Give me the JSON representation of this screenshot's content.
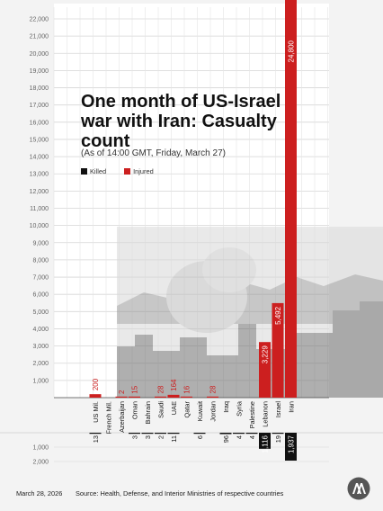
{
  "header": {
    "title": "One month of US-Israel war with Iran: Casualty count",
    "subtitle": "(As of 14:00 GMT, Friday, March 27)"
  },
  "legend": {
    "killed": "Killed",
    "injured": "Injured"
  },
  "footer": {
    "date": "March 28, 2026",
    "source": "Source: Health, Defense, and Interior Ministries of respective countries"
  },
  "logo": {
    "text": "AA"
  },
  "colors": {
    "injured": "#cc1f1f",
    "killed": "#111111",
    "grid": "#d6d6d6",
    "background": "#f3f3f3"
  },
  "chart_data": {
    "type": "bar",
    "categories": [
      "US Mil.",
      "French Mil.",
      "Azerbaijan",
      "Oman",
      "Bahrain",
      "Saudi",
      "UAE",
      "Qatar",
      "Kuwait",
      "Jordan",
      "Iraq",
      "Syria",
      "Palestine",
      "Lebanon",
      "Israel",
      "Iran"
    ],
    "series": [
      {
        "name": "Injured",
        "values": [
          200,
          null,
          2,
          15,
          null,
          28,
          164,
          16,
          null,
          28,
          null,
          null,
          null,
          3229,
          5492,
          24800
        ],
        "labels": [
          "200",
          "",
          "2",
          "15",
          "",
          "28",
          "164",
          "16",
          "",
          "28",
          "",
          "",
          "",
          "3,229",
          "5,492",
          "24,800"
        ]
      },
      {
        "name": "Killed",
        "values": [
          13,
          null,
          null,
          3,
          3,
          2,
          11,
          null,
          6,
          null,
          96,
          4,
          4,
          1116,
          19,
          1937
        ],
        "labels": [
          "13",
          "",
          "",
          "3",
          "3",
          "2",
          "11",
          "",
          "6",
          "",
          "96",
          "4",
          "4",
          "1,116",
          "19",
          "1,937"
        ]
      }
    ],
    "injured_axis": {
      "ylim": [
        0,
        23000
      ],
      "ticks": [
        "1,000",
        "2,000",
        "3,000",
        "4,000",
        "5,000",
        "6,000",
        "7,000",
        "8,000",
        "9,000",
        "10,000",
        "11,000",
        "12,000",
        "13,000",
        "14,000",
        "15,000",
        "16,000",
        "17,000",
        "18,000",
        "19,000",
        "20,000",
        "21,000",
        "22,000"
      ]
    },
    "killed_axis": {
      "ylim": [
        0,
        2000
      ],
      "ticks": [
        "1,000",
        "2,000"
      ]
    },
    "grid": true,
    "legend_position": "top-left"
  }
}
